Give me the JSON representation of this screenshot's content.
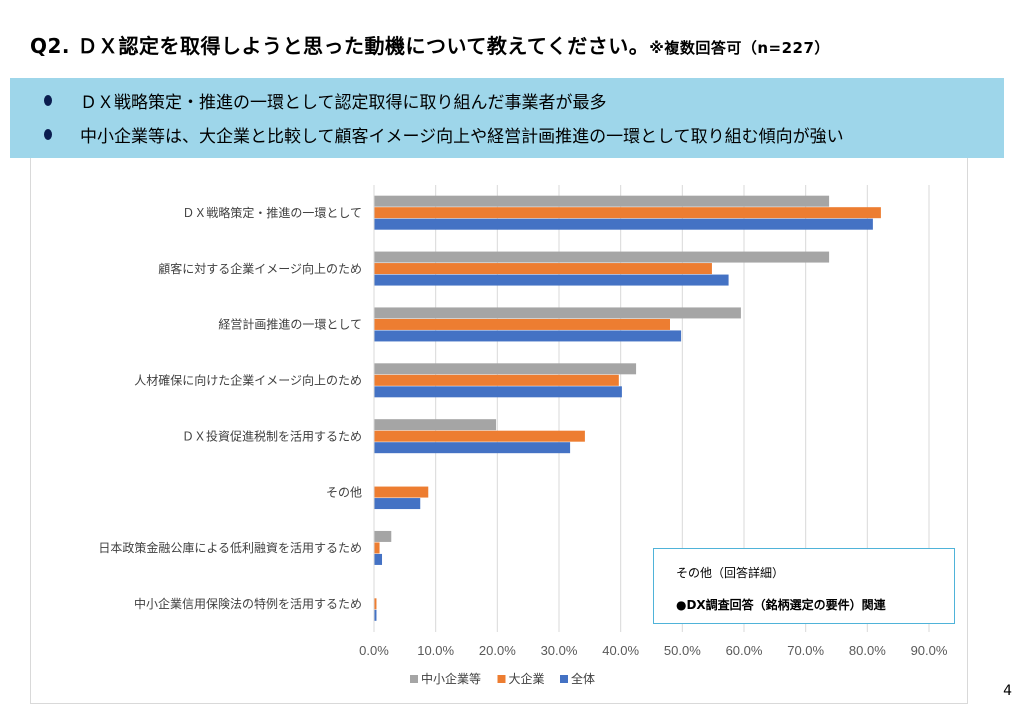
{
  "header": {
    "title": "Q2.  ＤＸ認定を取得しようと思った動機について教えてください。",
    "note": "※複数回答可（n=227）"
  },
  "summary": {
    "bullets": [
      "ＤＸ戦略策定・推進の一環として認定取得に取り組んだ事業者が最多",
      "中小企業等は、大企業と比較して顧客イメージ向上や経営計画推進の一環として取り組む傾向が強い"
    ],
    "bg_color": "#9ed6ea"
  },
  "callout": {
    "heading": "その他（回答詳細）",
    "item": "●DX調査回答（銘柄選定の要件）関連"
  },
  "page_number": "4",
  "chart_data": {
    "type": "bar",
    "orientation": "horizontal",
    "title": "",
    "xlabel": "",
    "ylabel": "",
    "categories": [
      "ＤＸ戦略策定・推進の一環として",
      "顧客に対する企業イメージ向上のため",
      "経営計画推進の一環として",
      "人材確保に向けた企業イメージ向上のため",
      "ＤＸ投資促進税制を活用するため",
      "その他",
      "日本政策金融公庫による低利融資を活用するため",
      "中小企業信用保険法の特例を活用するため"
    ],
    "series": [
      {
        "name": "中小企業等",
        "color": "#a5a5a5",
        "values": [
          73.8,
          73.8,
          59.5,
          42.5,
          19.8,
          0.0,
          2.8,
          0.0
        ]
      },
      {
        "name": "大企業",
        "color": "#ed7d31",
        "values": [
          82.2,
          54.8,
          48.0,
          39.7,
          34.2,
          8.8,
          0.9,
          0.4
        ]
      },
      {
        "name": "全体",
        "color": "#4472c4",
        "values": [
          80.9,
          57.5,
          49.8,
          40.2,
          31.8,
          7.5,
          1.3,
          0.4
        ]
      }
    ],
    "xlim": [
      0,
      90
    ],
    "xticks": [
      "0.0%",
      "10.0%",
      "20.0%",
      "30.0%",
      "40.0%",
      "50.0%",
      "60.0%",
      "70.0%",
      "80.0%",
      "90.0%"
    ],
    "grid": true,
    "legend": "bottom",
    "legend_order": [
      "中小企業等",
      "大企業",
      "全体"
    ]
  }
}
